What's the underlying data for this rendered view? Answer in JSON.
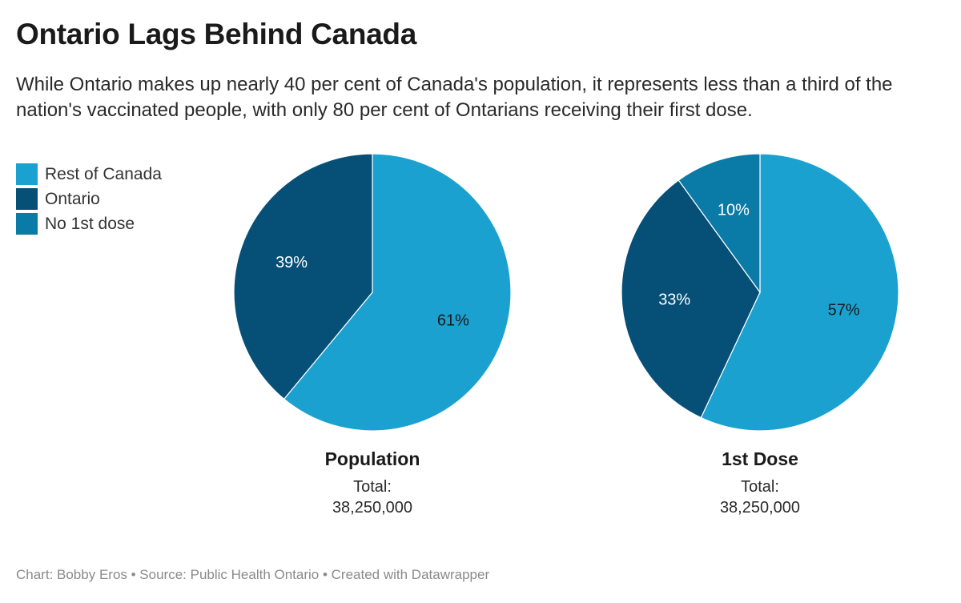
{
  "title": "Ontario Lags Behind Canada",
  "subtitle": "While Ontario makes up nearly 40 per cent of Canada's population, it represents less than a third of the nation's vaccinated people, with only 80 per cent of Ontarians receiving their first dose.",
  "legend": [
    {
      "label": "Rest of Canada",
      "color": "#1aa1cf"
    },
    {
      "label": "Ontario",
      "color": "#064f77"
    },
    {
      "label": "No 1st dose",
      "color": "#0a7aa6"
    }
  ],
  "chart_data": [
    {
      "type": "pie",
      "name": "Population",
      "total_label": "Total:",
      "total_value": "38,250,000",
      "slices": [
        {
          "label": "Rest of Canada",
          "value": 61,
          "display": "61%",
          "color": "#1aa1cf",
          "text_color": "#1a1a1a"
        },
        {
          "label": "Ontario",
          "value": 39,
          "display": "39%",
          "color": "#064f77",
          "text_color": "#ffffff"
        }
      ]
    },
    {
      "type": "pie",
      "name": "1st Dose",
      "total_label": "Total:",
      "total_value": "38,250,000",
      "slices": [
        {
          "label": "Rest of Canada",
          "value": 57,
          "display": "57%",
          "color": "#1aa1cf",
          "text_color": "#1a1a1a"
        },
        {
          "label": "Ontario",
          "value": 33,
          "display": "33%",
          "color": "#064f77",
          "text_color": "#ffffff"
        },
        {
          "label": "No 1st dose",
          "value": 10,
          "display": "10%",
          "color": "#0a7aa6",
          "text_color": "#ffffff"
        }
      ]
    }
  ],
  "footer": "Chart: Bobby Eros • Source: Public Health Ontario • Created with Datawrapper"
}
